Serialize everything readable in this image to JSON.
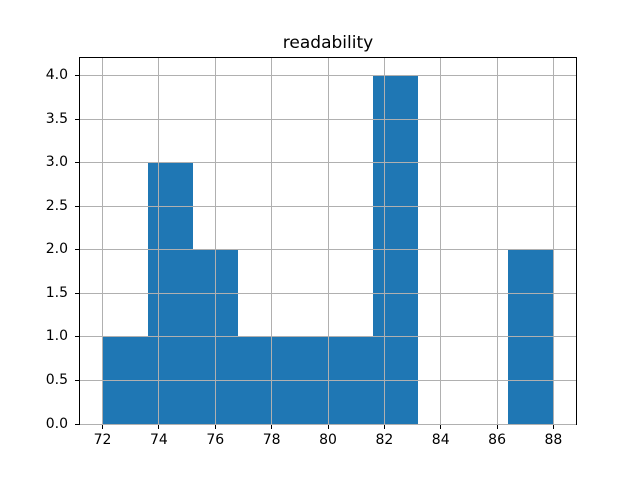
{
  "chart_data": {
    "type": "bar",
    "subtype": "histogram",
    "title": "readability",
    "xlabel": "",
    "ylabel": "",
    "bin_edges": [
      72.0,
      73.6,
      75.2,
      76.8,
      78.4,
      80.0,
      81.6,
      83.2,
      84.8,
      86.4,
      88.0
    ],
    "counts": [
      1,
      3,
      2,
      1,
      1,
      1,
      4,
      0,
      0,
      2
    ],
    "x_tick_values": [
      72,
      74,
      76,
      78,
      80,
      82,
      84,
      86,
      88
    ],
    "x_tick_labels": [
      "72",
      "74",
      "76",
      "78",
      "80",
      "82",
      "84",
      "86",
      "88"
    ],
    "y_tick_values": [
      0.0,
      0.5,
      1.0,
      1.5,
      2.0,
      2.5,
      3.0,
      3.5,
      4.0
    ],
    "y_tick_labels": [
      "0.0",
      "0.5",
      "1.0",
      "1.5",
      "2.0",
      "2.5",
      "3.0",
      "3.5",
      "4.0"
    ],
    "xlim": [
      71.2,
      88.8
    ],
    "ylim": [
      0,
      4.2
    ],
    "grid": true,
    "grid_above_bars": true,
    "legend": null,
    "colors": {
      "bar_fill": "#1f77b4",
      "grid": "#b0b0b0",
      "spine": "#000000",
      "text": "#000000",
      "background": "#ffffff"
    }
  }
}
